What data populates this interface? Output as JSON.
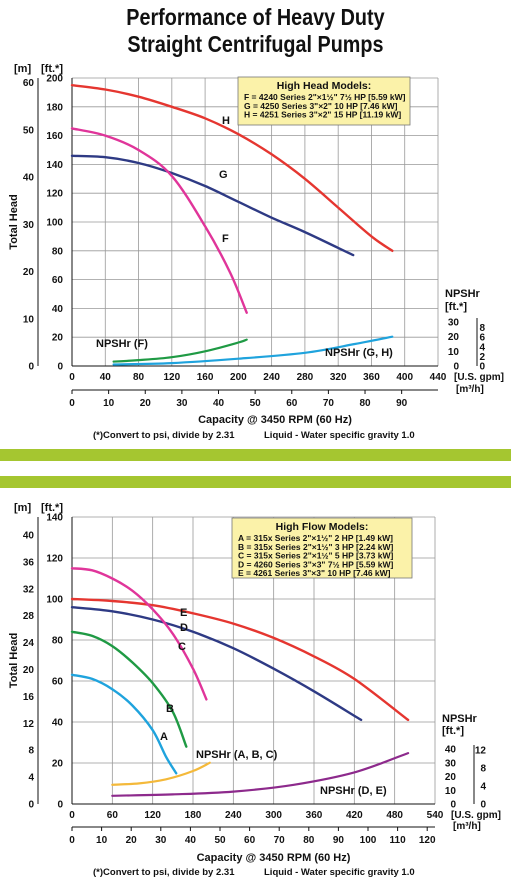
{
  "page": {
    "title_line1": "Performance of Heavy Duty",
    "title_line2": "Straight Centrifugal Pumps"
  },
  "colors": {
    "band": "#a5c630",
    "legend_bg": "#fbf2a9",
    "grid": "#999999"
  },
  "chart_data": [
    {
      "type": "line",
      "legend_title": "High Head Models:",
      "legend": [
        "F = 4240 Series 2\"×1½\" 7½ HP [5.59 kW]",
        "G = 4250 Series 3\"×2\" 10 HP [7.46 kW]",
        "H = 4251 Series 3\"×2\" 15 HP [11.19 kW]"
      ],
      "legend_placement": "top-right",
      "ylabel": "Total Head",
      "xlabel": "Capacity @ 3450 RPM (60 Hz)",
      "y_unit_m": "[m]",
      "y_unit_ft": "[ft.*]",
      "x_unit_gpm": "[U.S. gpm]",
      "x_unit_m3h": "[m³/h]",
      "note_left": "(*)Convert to psi, divide by 2.31",
      "note_right": "Liquid - Water specific gravity 1.0",
      "xlim": [
        0,
        440
      ],
      "ylim_ft": [
        0,
        200
      ],
      "x_ticks": [
        "0",
        "40",
        "80",
        "120",
        "160",
        "200",
        "240",
        "280",
        "320",
        "360",
        "400",
        "440"
      ],
      "ft_ticks": [
        "0",
        "20",
        "40",
        "60",
        "80",
        "100",
        "120",
        "140",
        "160",
        "180",
        "200"
      ],
      "m_ticks": [
        "0",
        "10",
        "20",
        "30",
        "40",
        "50",
        "60"
      ],
      "m3h_ticks": [
        "0",
        "10",
        "20",
        "30",
        "40",
        "50",
        "60",
        "70",
        "80",
        "90"
      ],
      "npsh_title": "NPSHr",
      "npsh_unit_ft": "[ft.*]",
      "npsh_ft_ticks": [
        "0",
        "10",
        "20",
        "30"
      ],
      "npsh_m_ticks": [
        "0",
        "2",
        "4",
        "6",
        "8"
      ],
      "grid": true,
      "series": [
        {
          "name": "H",
          "color": "#e53630",
          "x": [
            0,
            40,
            80,
            120,
            160,
            200,
            240,
            280,
            320,
            360,
            385
          ],
          "y": [
            195,
            192,
            187,
            180,
            172,
            161,
            147,
            130,
            110,
            90,
            80
          ]
        },
        {
          "name": "G",
          "color": "#2e3a84",
          "x": [
            0,
            40,
            80,
            120,
            160,
            200,
            240,
            280,
            320,
            338
          ],
          "y": [
            146,
            145,
            141,
            134,
            125,
            114,
            103,
            93,
            82,
            77
          ]
        },
        {
          "name": "F",
          "color": "#e0359a",
          "x": [
            0,
            40,
            80,
            120,
            160,
            190,
            210
          ],
          "y": [
            165,
            160,
            150,
            132,
            97,
            65,
            37
          ]
        }
      ],
      "npsh": [
        {
          "name": "NPSHr (F)",
          "color": "#1f9a44",
          "x": [
            50,
            80,
            120,
            160,
            200,
            210
          ],
          "y_ft": [
            3,
            4,
            6,
            10,
            16,
            18
          ]
        },
        {
          "name": "NPSHr (G, H)",
          "color": "#1fa3dd",
          "x": [
            50,
            120,
            200,
            280,
            340,
            385
          ],
          "y_ft": [
            1,
            2,
            5,
            9,
            15,
            20
          ]
        }
      ]
    },
    {
      "type": "line",
      "legend_title": "High Flow Models:",
      "legend": [
        "A = 315x Series 2\"×1½\" 2 HP [1.49 kW]",
        "B = 315x Series 2\"×1½\" 3 HP [2.24 kW]",
        "C = 315x Series 2\"×1½\" 5 HP [3.73 kW]",
        "D = 4260 Series 3\"×3\" 7½ HP [5.59 kW]",
        "E = 4261 Series 3\"×3\" 10 HP [7.46 kW]"
      ],
      "legend_placement": "top-right",
      "ylabel": "Total Head",
      "xlabel": "Capacity @ 3450 RPM (60 Hz)",
      "y_unit_m": "[m]",
      "y_unit_ft": "[ft.*]",
      "x_unit_gpm": "[U.S. gpm]",
      "x_unit_m3h": "[m³/h]",
      "note_left": "(*)Convert to psi, divide by 2.31",
      "note_right": "Liquid - Water specific gravity 1.0",
      "xlim": [
        0,
        540
      ],
      "ylim_ft": [
        0,
        140
      ],
      "x_ticks": [
        "0",
        "60",
        "120",
        "180",
        "240",
        "300",
        "360",
        "420",
        "480",
        "540"
      ],
      "ft_ticks": [
        "0",
        "20",
        "40",
        "60",
        "80",
        "100",
        "120",
        "140"
      ],
      "m_ticks": [
        "0",
        "4",
        "8",
        "12",
        "16",
        "20",
        "24",
        "28",
        "32",
        "36",
        "40"
      ],
      "m3h_ticks": [
        "0",
        "10",
        "20",
        "30",
        "40",
        "50",
        "60",
        "70",
        "80",
        "90",
        "100",
        "110",
        "120"
      ],
      "npsh_title": "NPSHr",
      "npsh_unit_ft": "[ft.*]",
      "npsh_ft_ticks": [
        "0",
        "10",
        "20",
        "30",
        "40"
      ],
      "npsh_m_ticks": [
        "0",
        "4",
        "8",
        "12"
      ],
      "grid": true,
      "series": [
        {
          "name": "E",
          "color": "#e53630",
          "x": [
            0,
            60,
            120,
            180,
            240,
            300,
            360,
            420,
            500
          ],
          "y": [
            100,
            99,
            97,
            93,
            88,
            81,
            72,
            61,
            41
          ]
        },
        {
          "name": "D",
          "color": "#2e3a84",
          "x": [
            0,
            60,
            120,
            180,
            240,
            300,
            360,
            430
          ],
          "y": [
            96,
            94,
            90,
            84,
            76,
            66,
            55,
            41
          ]
        },
        {
          "name": "C",
          "color": "#e0359a",
          "x": [
            0,
            30,
            60,
            90,
            120,
            150,
            180,
            200
          ],
          "y": [
            115,
            114,
            110,
            104,
            95,
            83,
            66,
            51
          ]
        },
        {
          "name": "B",
          "color": "#1f9a44",
          "x": [
            0,
            30,
            60,
            90,
            120,
            150,
            170
          ],
          "y": [
            84,
            82,
            77,
            69,
            59,
            45,
            28
          ]
        },
        {
          "name": "A",
          "color": "#1fa3dd",
          "x": [
            0,
            30,
            60,
            90,
            120,
            140,
            155
          ],
          "y": [
            63,
            61,
            56,
            48,
            36,
            23,
            15
          ]
        }
      ],
      "npsh": [
        {
          "name": "NPSHr (A, B, C)",
          "color": "#f4b93a",
          "x": [
            60,
            100,
            140,
            180,
            205
          ],
          "y_ft": [
            14,
            15,
            18,
            24,
            30
          ]
        },
        {
          "name": "NPSHr (D, E)",
          "color": "#8d2a8c",
          "x": [
            60,
            150,
            240,
            330,
            420,
            500
          ],
          "y_ft": [
            6,
            7,
            9,
            14,
            23,
            37
          ]
        }
      ]
    }
  ]
}
